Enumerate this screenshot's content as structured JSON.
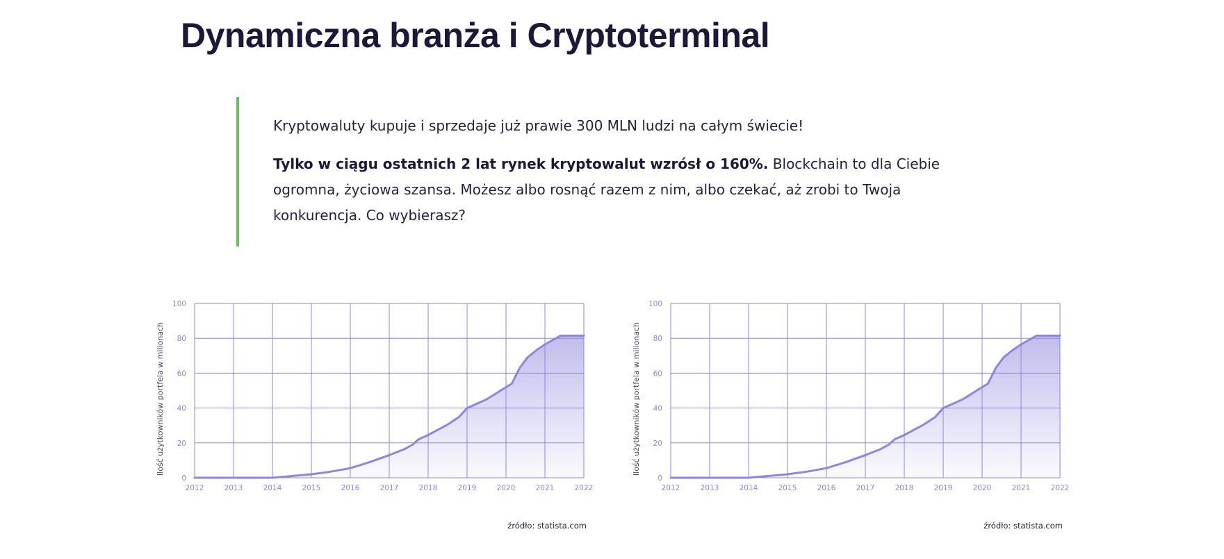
{
  "header": {
    "title": "Dynamiczna branża i Cryptoterminal"
  },
  "quote": {
    "paragraph1": "Kryptowaluty kupuje i sprzedaje już prawie 300 MLN ludzi na całym świecie!",
    "paragraph2_bold": "Tylko w ciągu ostatnich 2 lat rynek kryptowalut wzrósł o 160%.",
    "paragraph2_rest": " Blockchain to dla Ciebie ogromna, życiowa szansa. Możesz albo rosnąć razem z nim, albo czekać, aż zrobi to Twoja konkurencja. Co wybierasz?",
    "accent_color": "#6dbb63"
  },
  "chart_data": [
    {
      "type": "area",
      "ylabel": "Ilość użytkowników portfela w milionach",
      "source": "źródło: statista.com",
      "xlim": [
        2012,
        2022
      ],
      "ylim": [
        0,
        100
      ],
      "x_ticks": [
        "2012",
        "2013",
        "2014",
        "2015",
        "2016",
        "2017",
        "2018",
        "2019",
        "2020",
        "2021",
        "2022"
      ],
      "y_ticks": [
        "0",
        "20",
        "40",
        "60",
        "80",
        "100"
      ],
      "grid": true,
      "color": "#8d86dc",
      "x": [
        2012,
        2013,
        2014,
        2014.5,
        2015,
        2015.5,
        2016,
        2016.5,
        2017,
        2017.4,
        2017.6,
        2017.75,
        2018,
        2018.5,
        2018.8,
        2019,
        2019.5,
        2020,
        2020.15,
        2020.35,
        2020.55,
        2020.8,
        2021,
        2021.4,
        2022
      ],
      "y": [
        0,
        0,
        0,
        1,
        2,
        3.5,
        5.5,
        9,
        13,
        16.5,
        19,
        22,
        24.5,
        30.5,
        35,
        40,
        45,
        52,
        54,
        63,
        69,
        73.5,
        76.5,
        81.5,
        81.5
      ]
    },
    {
      "type": "area",
      "ylabel": "Ilość użytkowników portfela w milionach",
      "source": "źródło: statista.com",
      "xlim": [
        2012,
        2022
      ],
      "ylim": [
        0,
        100
      ],
      "x_ticks": [
        "2012",
        "2013",
        "2014",
        "2015",
        "2016",
        "2017",
        "2018",
        "2019",
        "2020",
        "2021",
        "2022"
      ],
      "y_ticks": [
        "0",
        "20",
        "40",
        "60",
        "80",
        "100"
      ],
      "grid": true,
      "color": "#8d86dc",
      "x": [
        2012,
        2013,
        2014,
        2014.5,
        2015,
        2015.5,
        2016,
        2016.5,
        2017,
        2017.4,
        2017.6,
        2017.75,
        2018,
        2018.5,
        2018.8,
        2019,
        2019.5,
        2020,
        2020.15,
        2020.35,
        2020.55,
        2020.8,
        2021,
        2021.4,
        2022
      ],
      "y": [
        0,
        0,
        0,
        1,
        2,
        3.5,
        5.5,
        9,
        13,
        16.5,
        19,
        22,
        24.5,
        30.5,
        35,
        40,
        45,
        52,
        54,
        63,
        69,
        73.5,
        76.5,
        81.5,
        81.5
      ]
    }
  ]
}
